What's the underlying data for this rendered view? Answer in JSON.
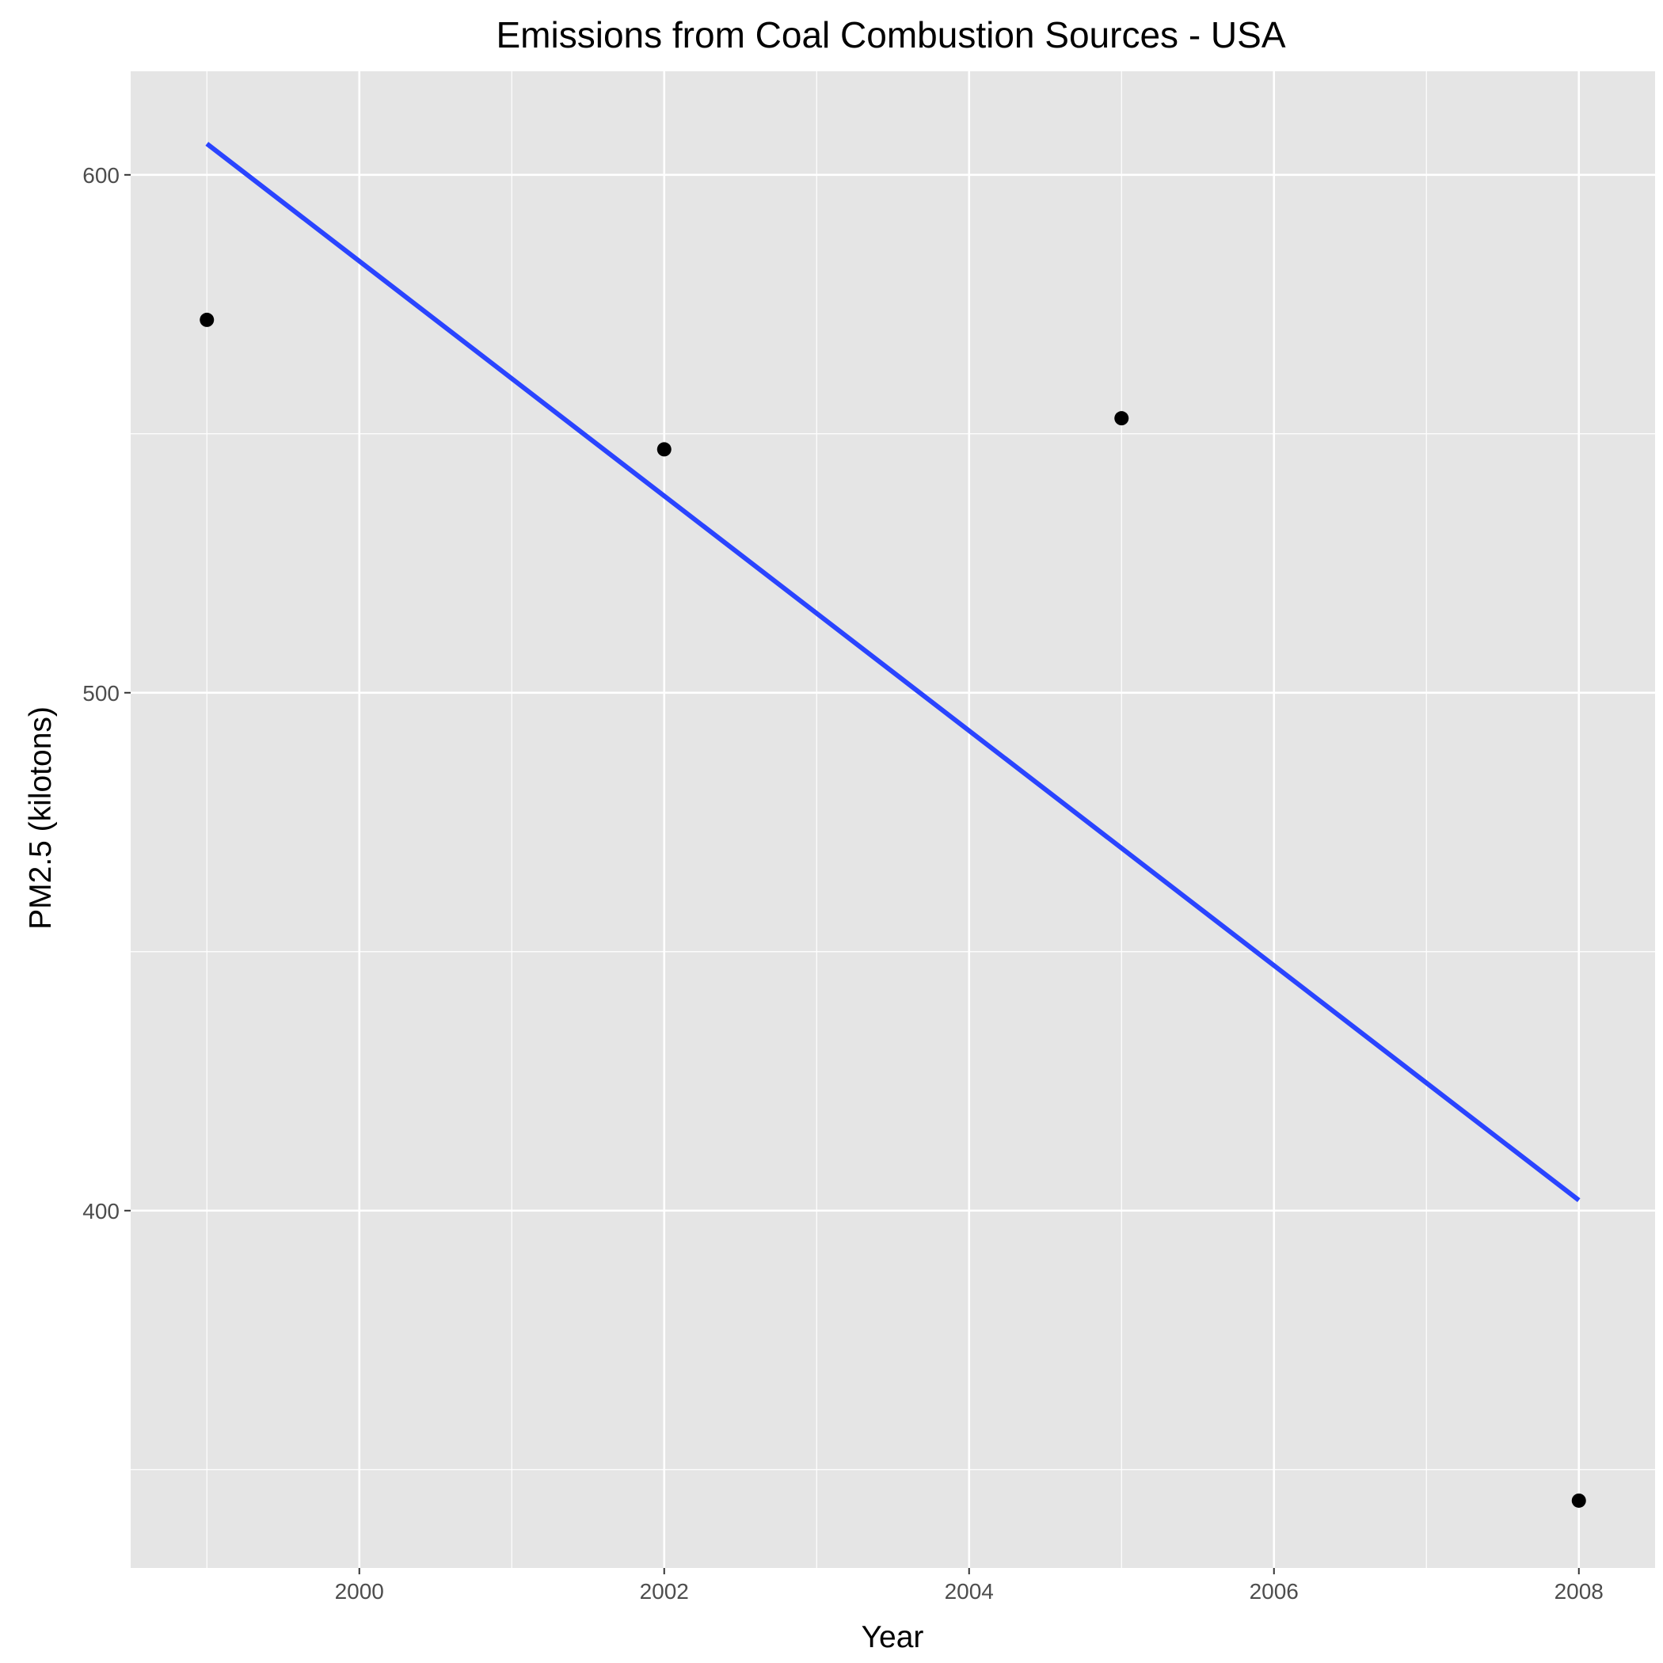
{
  "chart_data": {
    "type": "scatter",
    "title": "Emissions from Coal Combustion Sources - USA",
    "xlabel": "Year",
    "ylabel": "PM2.5 (kilotons)",
    "xlim": [
      1998.5,
      2008.5
    ],
    "ylim": [
      331,
      620
    ],
    "x_ticks": [
      2000,
      2002,
      2004,
      2006,
      2008
    ],
    "y_ticks": [
      400,
      500,
      600
    ],
    "grid": true,
    "points": [
      {
        "x": 1999,
        "y": 572
      },
      {
        "x": 2002,
        "y": 547
      },
      {
        "x": 2005,
        "y": 553
      },
      {
        "x": 2008,
        "y": 344
      }
    ],
    "trend_line": {
      "x": [
        1999,
        2008
      ],
      "y": [
        606,
        402
      ]
    },
    "colors": {
      "panel": "#e5e5e5",
      "grid": "#ffffff",
      "points": "#000000",
      "trend_line": "#2a44ff",
      "ticks": "#333333",
      "tick_labels": "#4d4d4d"
    }
  }
}
